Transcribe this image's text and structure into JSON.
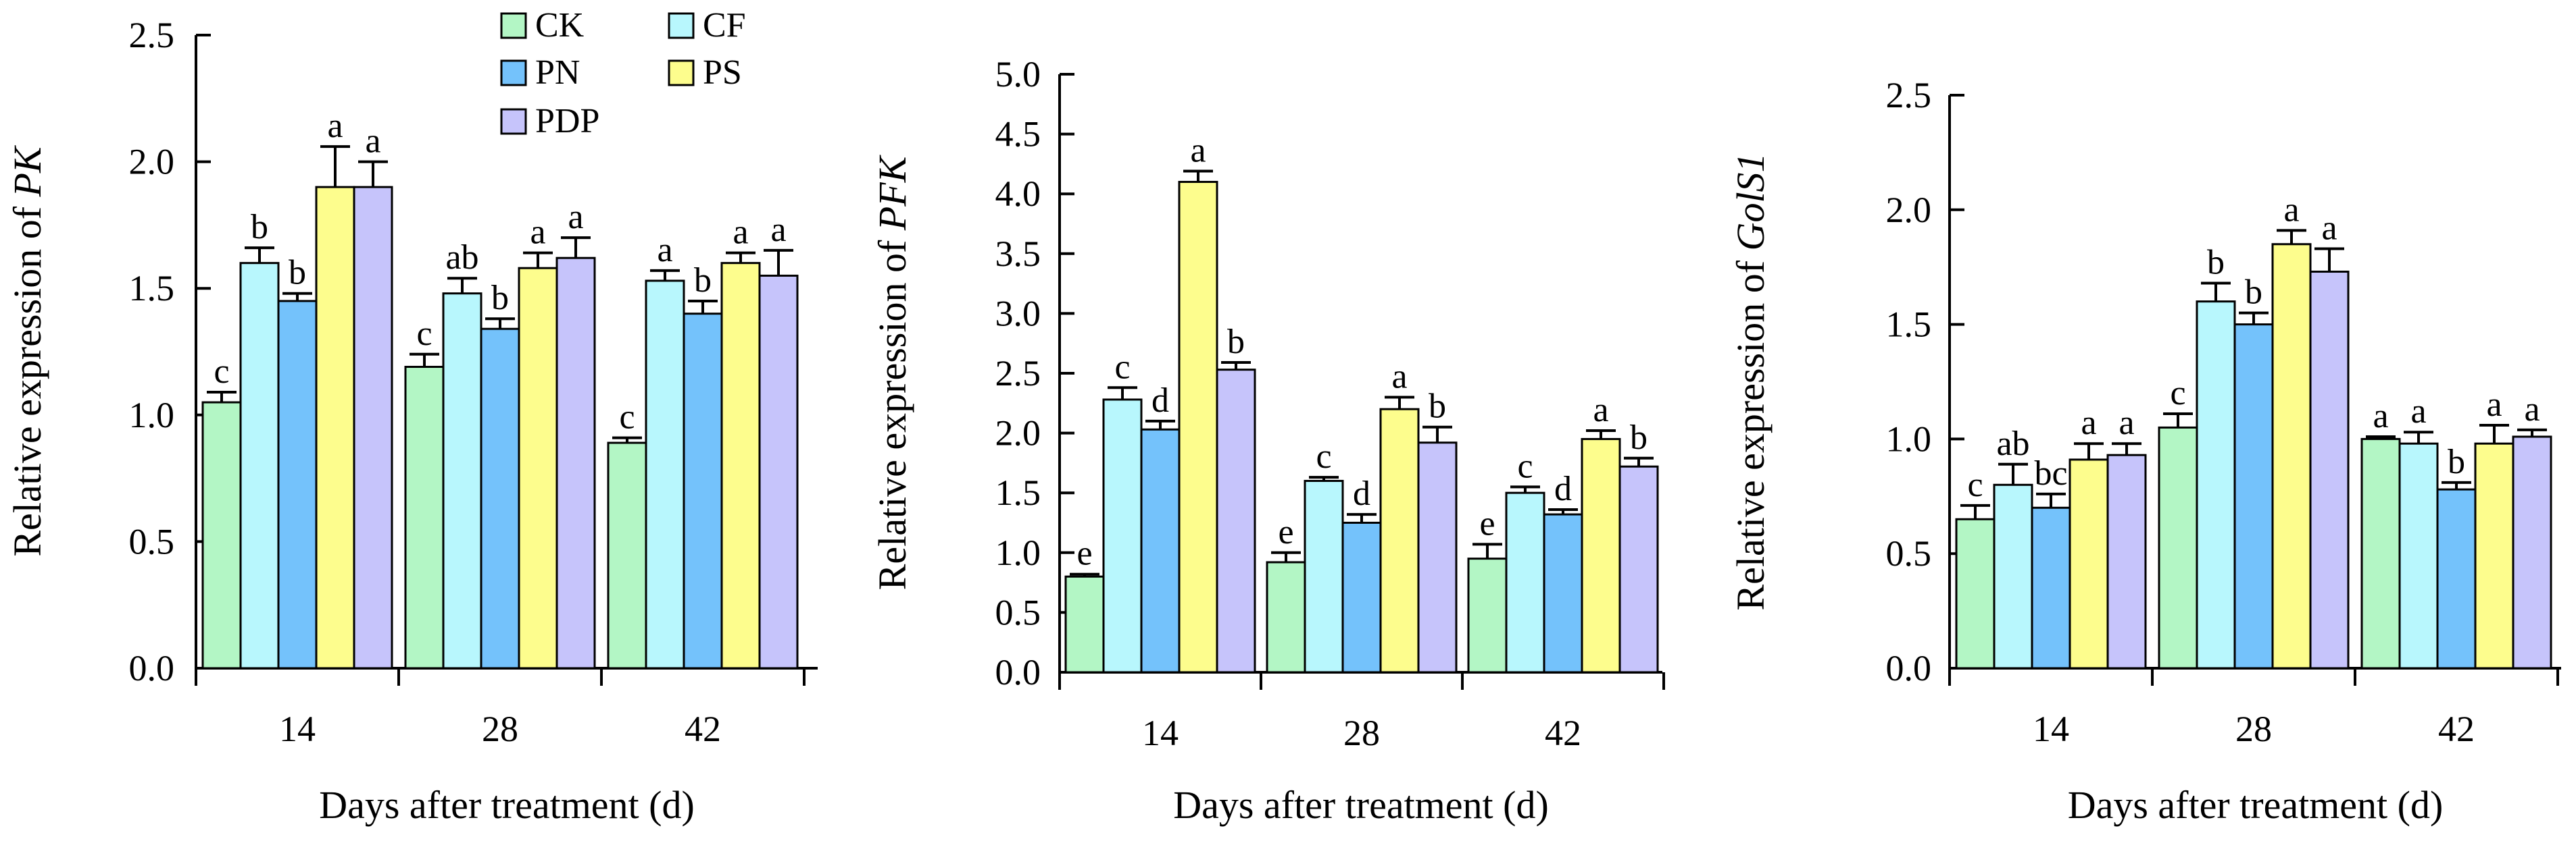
{
  "chart_data": [
    {
      "type": "bar",
      "title": "",
      "ylabel_prefix": "Relative expression of ",
      "ylabel_gene": "PK",
      "xlabel": "Days after treatment (d)",
      "ylim": [
        0,
        2.5
      ],
      "yticks": [
        "0.0",
        "0.5",
        "1.0",
        "1.5",
        "2.0",
        "2.5"
      ],
      "categories": [
        "14",
        "28",
        "42"
      ],
      "legend": true,
      "series": [
        {
          "name": "CK",
          "values": [
            1.05,
            1.19,
            0.89
          ],
          "errors": [
            0.04,
            0.05,
            0.02
          ],
          "letters": [
            "c",
            "c",
            "c"
          ]
        },
        {
          "name": "CF",
          "values": [
            1.6,
            1.48,
            1.53
          ],
          "errors": [
            0.06,
            0.06,
            0.04
          ],
          "letters": [
            "b",
            "ab",
            "a"
          ]
        },
        {
          "name": "PN",
          "values": [
            1.45,
            1.34,
            1.4
          ],
          "errors": [
            0.03,
            0.04,
            0.05
          ],
          "letters": [
            "b",
            "b",
            "b"
          ]
        },
        {
          "name": "PS",
          "values": [
            1.9,
            1.58,
            1.6
          ],
          "errors": [
            0.16,
            0.06,
            0.04
          ],
          "letters": [
            "a",
            "a",
            "a"
          ]
        },
        {
          "name": "PDP",
          "values": [
            1.9,
            1.62,
            1.55
          ],
          "errors": [
            0.1,
            0.08,
            0.1
          ],
          "letters": [
            "a",
            "a",
            "a"
          ]
        }
      ]
    },
    {
      "type": "bar",
      "title": "",
      "ylabel_prefix": "Relative expression of ",
      "ylabel_gene": "PFK",
      "xlabel": "Days after treatment (d)",
      "ylim": [
        0,
        5.0
      ],
      "yticks": [
        "0.0",
        "0.5",
        "1.0",
        "1.5",
        "2.0",
        "2.5",
        "3.0",
        "3.5",
        "4.0",
        "4.5",
        "5.0"
      ],
      "categories": [
        "14",
        "28",
        "42"
      ],
      "legend": false,
      "series": [
        {
          "name": "CK",
          "values": [
            0.8,
            0.92,
            0.95
          ],
          "errors": [
            0.02,
            0.08,
            0.12
          ],
          "letters": [
            "e",
            "e",
            "e"
          ]
        },
        {
          "name": "CF",
          "values": [
            2.28,
            1.6,
            1.5
          ],
          "errors": [
            0.1,
            0.03,
            0.05
          ],
          "letters": [
            "c",
            "c",
            "c"
          ]
        },
        {
          "name": "PN",
          "values": [
            2.03,
            1.25,
            1.32
          ],
          "errors": [
            0.07,
            0.07,
            0.04
          ],
          "letters": [
            "d",
            "d",
            "d"
          ]
        },
        {
          "name": "PS",
          "values": [
            4.1,
            2.2,
            1.95
          ],
          "errors": [
            0.09,
            0.1,
            0.07
          ],
          "letters": [
            "a",
            "a",
            "a"
          ]
        },
        {
          "name": "PDP",
          "values": [
            2.53,
            1.92,
            1.72
          ],
          "errors": [
            0.06,
            0.13,
            0.07
          ],
          "letters": [
            "b",
            "b",
            "b"
          ]
        }
      ]
    },
    {
      "type": "bar",
      "title": "",
      "ylabel_prefix": "Relative expression of ",
      "ylabel_gene": "GolS1",
      "xlabel": "Days after treatment (d)",
      "ylim": [
        0,
        2.5
      ],
      "yticks": [
        "0.0",
        "0.5",
        "1.0",
        "1.5",
        "2.0",
        "2.5"
      ],
      "categories": [
        "14",
        "28",
        "42"
      ],
      "legend": false,
      "series": [
        {
          "name": "CK",
          "values": [
            0.65,
            1.05,
            1.0
          ],
          "errors": [
            0.06,
            0.06,
            0.01
          ],
          "letters": [
            "c",
            "c",
            "a"
          ]
        },
        {
          "name": "CF",
          "values": [
            0.8,
            1.6,
            0.98
          ],
          "errors": [
            0.09,
            0.08,
            0.05
          ],
          "letters": [
            "ab",
            "b",
            "a"
          ]
        },
        {
          "name": "PN",
          "values": [
            0.7,
            1.5,
            0.78
          ],
          "errors": [
            0.06,
            0.05,
            0.03
          ],
          "letters": [
            "bc",
            "b",
            "b"
          ]
        },
        {
          "name": "PS",
          "values": [
            0.91,
            1.85,
            0.98
          ],
          "errors": [
            0.07,
            0.06,
            0.08
          ],
          "letters": [
            "a",
            "a",
            "a"
          ]
        },
        {
          "name": "PDP",
          "values": [
            0.93,
            1.73,
            1.01
          ],
          "errors": [
            0.05,
            0.1,
            0.03
          ],
          "letters": [
            "a",
            "a",
            "a"
          ]
        }
      ]
    }
  ],
  "series_colors": {
    "CK": "#b3f6c5",
    "CF": "#b8f7fd",
    "PN": "#74c2fb",
    "PS": "#fdfd8d",
    "PDP": "#c6c4fb"
  }
}
